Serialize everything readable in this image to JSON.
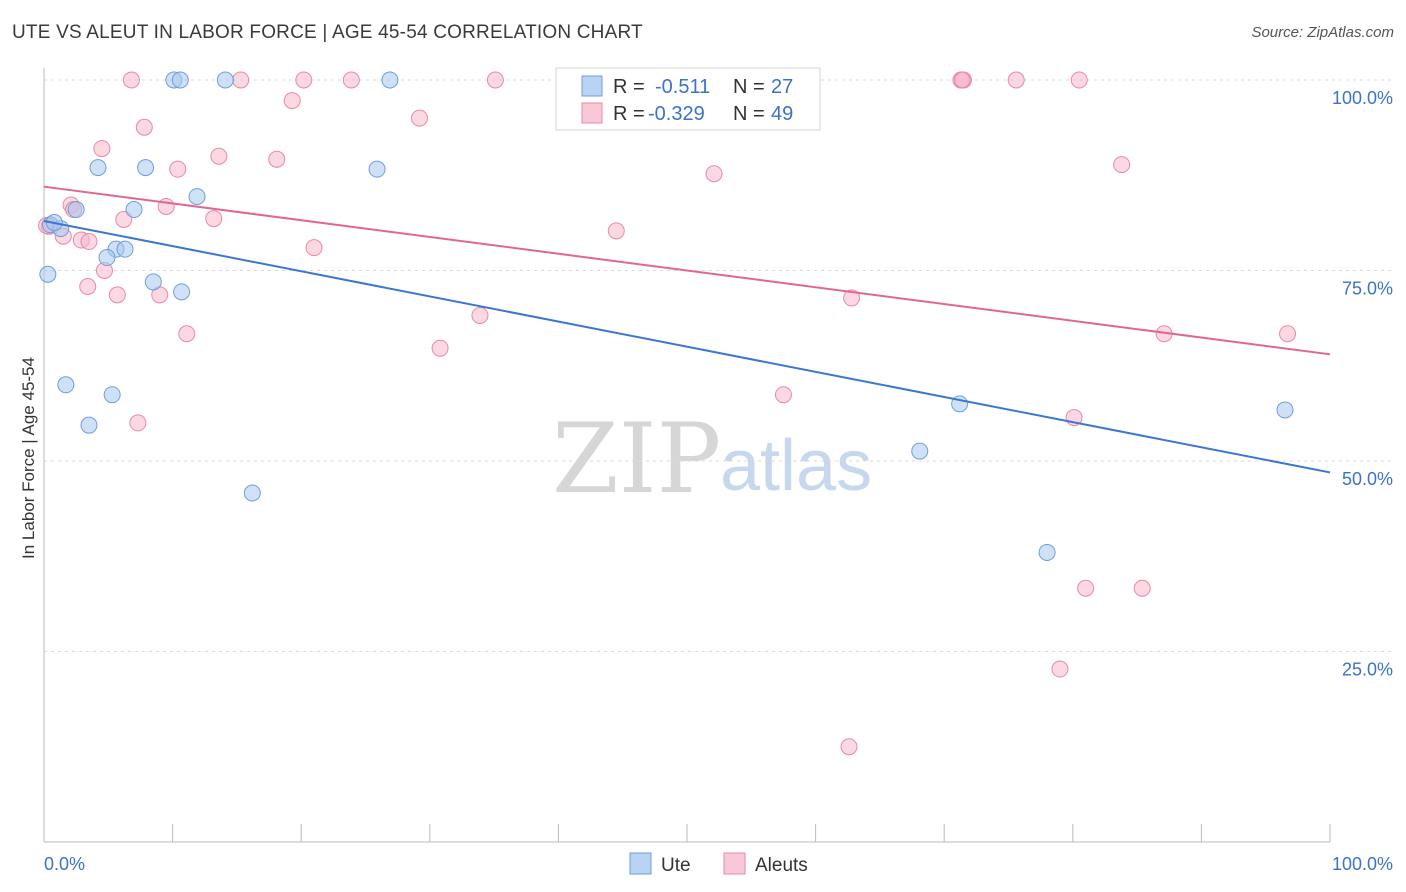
{
  "title": "UTE VS ALEUT IN LABOR FORCE | AGE 45-54 CORRELATION CHART",
  "source": "Source: ZipAtlas.com",
  "watermark": {
    "zip": "ZIP",
    "atlas": "atlas"
  },
  "colors": {
    "ute_fill": "#a8c8f0",
    "ute_stroke": "#6f9fd8",
    "ute_line": "#3b77d0",
    "aleut_fill": "#f7b8cb",
    "aleut_stroke": "#e88aa8",
    "aleut_line": "#e06890",
    "tick_label": "#3b73c8",
    "grid": "#d9d9d9"
  },
  "legend": {
    "rows": [
      {
        "r_label": "R =",
        "r_value": "-0.511",
        "n_label": "N =",
        "n_value": "27"
      },
      {
        "r_label": "R =",
        "r_value": "-0.329",
        "n_label": "N =",
        "n_value": "49"
      }
    ]
  },
  "chart_data": {
    "type": "scatter",
    "title": "UTE VS ALEUT IN LABOR FORCE | AGE 45-54 CORRELATION CHART",
    "xlabel": "",
    "ylabel": "In Labor Force | Age 45-54",
    "xlim": [
      0,
      100
    ],
    "ylim": [
      0,
      105
    ],
    "x_tick_labels": [
      "0.0%",
      "100.0%"
    ],
    "y_ticks": [
      25,
      50,
      75,
      100
    ],
    "y_tick_labels": [
      "25.0%",
      "50.0%",
      "75.0%",
      "100.0%"
    ],
    "grid": true,
    "legend_position": "top-center",
    "series": [
      {
        "name": "Ute",
        "points": [
          [
            0.5,
            81
          ],
          [
            0.3,
            74.5
          ],
          [
            1.3,
            80.5
          ],
          [
            2.5,
            83
          ],
          [
            4.2,
            88.5
          ],
          [
            7.9,
            88.5
          ],
          [
            10.1,
            100
          ],
          [
            10.6,
            100
          ],
          [
            14.1,
            100
          ],
          [
            26.9,
            100
          ],
          [
            11.9,
            84.7
          ],
          [
            7.0,
            83
          ],
          [
            5.6,
            77.8
          ],
          [
            6.3,
            77.8
          ],
          [
            4.9,
            76.7
          ],
          [
            8.5,
            73.5
          ],
          [
            10.7,
            72.2
          ],
          [
            1.7,
            60
          ],
          [
            5.3,
            58.7
          ],
          [
            3.5,
            54.7
          ],
          [
            16.2,
            45.8
          ],
          [
            25.9,
            88.3
          ],
          [
            71.2,
            57.5
          ],
          [
            68.1,
            51.3
          ],
          [
            78.0,
            38
          ],
          [
            96.5,
            56.7
          ],
          [
            0.8,
            81.3
          ]
        ]
      },
      {
        "name": "Aleuts",
        "points": [
          [
            0.4,
            80.8
          ],
          [
            1.5,
            79.5
          ],
          [
            2.1,
            83.6
          ],
          [
            2.3,
            83
          ],
          [
            2.9,
            79
          ],
          [
            3.5,
            78.8
          ],
          [
            3.4,
            72.9
          ],
          [
            4.7,
            75
          ],
          [
            5.7,
            71.8
          ],
          [
            6.2,
            81.7
          ],
          [
            4.5,
            91
          ],
          [
            7.8,
            93.8
          ],
          [
            6.8,
            100
          ],
          [
            10.4,
            88.3
          ],
          [
            9.5,
            83.4
          ],
          [
            9.0,
            71.8
          ],
          [
            11.1,
            66.7
          ],
          [
            13.2,
            81.8
          ],
          [
            13.6,
            90
          ],
          [
            15.3,
            100
          ],
          [
            18.1,
            89.6
          ],
          [
            19.3,
            97.3
          ],
          [
            20.2,
            100
          ],
          [
            21.0,
            78
          ],
          [
            23.9,
            100
          ],
          [
            29.2,
            95
          ],
          [
            30.8,
            64.8
          ],
          [
            33.9,
            69.1
          ],
          [
            35.1,
            100
          ],
          [
            7.3,
            55
          ],
          [
            44.5,
            80.2
          ],
          [
            52.1,
            87.7
          ],
          [
            55.5,
            100
          ],
          [
            57.5,
            58.7
          ],
          [
            62.8,
            71.4
          ],
          [
            62.6,
            12.5
          ],
          [
            71.3,
            100
          ],
          [
            71.5,
            100
          ],
          [
            75.6,
            100
          ],
          [
            80.5,
            100
          ],
          [
            80.1,
            55.7
          ],
          [
            81.0,
            33.3
          ],
          [
            83.8,
            88.9
          ],
          [
            85.4,
            33.3
          ],
          [
            87.1,
            66.7
          ],
          [
            79.0,
            22.7
          ],
          [
            96.7,
            66.7
          ],
          [
            0.2,
            80.9
          ],
          [
            71.4,
            100
          ]
        ]
      }
    ],
    "trendlines": [
      {
        "name": "Ute",
        "from": [
          0,
          81.5
        ],
        "to": [
          100,
          48.5
        ]
      },
      {
        "name": "Aleuts",
        "from": [
          0,
          86
        ],
        "to": [
          100,
          64
        ]
      }
    ]
  },
  "bottom_legend": [
    "Ute",
    "Aleuts"
  ]
}
